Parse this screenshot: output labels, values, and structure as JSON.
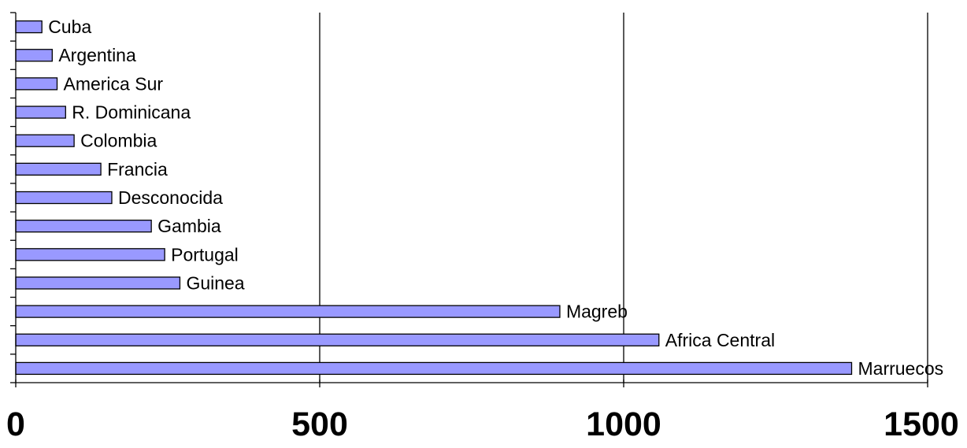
{
  "chart_data": {
    "type": "bar",
    "orientation": "horizontal",
    "title": "",
    "xlabel": "",
    "ylabel": "",
    "categories": [
      "Marruecos",
      "Africa Central",
      "Magreb",
      "Guinea",
      "Portugal",
      "Gambia",
      "Desconocida",
      "Francia",
      "Colombia",
      "R. Dominicana",
      "America Sur",
      "Argentina",
      "Cuba"
    ],
    "values": [
      1375,
      1058,
      895,
      270,
      245,
      223,
      158,
      140,
      96,
      82,
      68,
      60,
      43
    ],
    "xlim": [
      0,
      1500
    ],
    "xticks": [
      "0",
      "500",
      "1000",
      "1500"
    ],
    "grid": "vertical-major",
    "legend": "none",
    "colors": {
      "bar_fill": "#9999ff",
      "bar_stroke": "#000000",
      "grid": "#000000",
      "background": "#ffffff"
    }
  }
}
